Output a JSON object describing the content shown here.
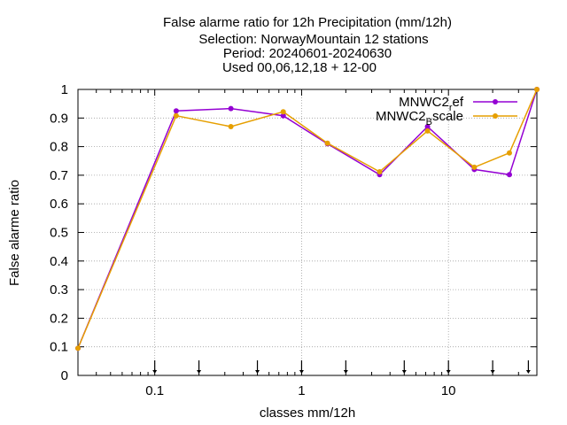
{
  "chart_data": {
    "type": "line",
    "title_lines": [
      "False alarme ratio  for 12h Precipitation (mm/12h)",
      "Selection: NorwayMountain     12 stations",
      "Period: 20240601-20240630",
      "Used 00,06,12,18 + 12-00"
    ],
    "xlabel": "classes mm/12h",
    "ylabel": "False alarme ratio",
    "x_scale": "log",
    "xlim": [
      0.03,
      40
    ],
    "ylim": [
      0,
      1
    ],
    "x_tick_labels": [
      "0.1",
      "1",
      "10"
    ],
    "y_tick_labels": [
      "0",
      "0.1",
      "0.2",
      "0.3",
      "0.4",
      "0.5",
      "0.6",
      "0.7",
      "0.8",
      "0.9",
      "1"
    ],
    "grid": true,
    "legend_position": "top-right",
    "threshold_markers": [
      0.1,
      0.2,
      0.5,
      1,
      2,
      5,
      10,
      20,
      35
    ],
    "series": [
      {
        "name": "MNWC2_ref",
        "legend_main": "MNWC2",
        "legend_sub": "r",
        "legend_rest": "ef",
        "color": "#9400d3",
        "x": [
          0.03,
          0.14,
          0.33,
          0.75,
          1.5,
          3.4,
          7.2,
          15,
          26,
          40
        ],
        "y": [
          0.095,
          0.925,
          0.933,
          0.908,
          0.81,
          0.702,
          0.87,
          0.72,
          0.702,
          1.0
        ]
      },
      {
        "name": "MNWC2_Bscale",
        "legend_main": "MNWC2",
        "legend_sub": "B",
        "legend_rest": "scale",
        "color": "#e69f00",
        "x": [
          0.03,
          0.14,
          0.33,
          0.75,
          1.5,
          3.4,
          7.2,
          15,
          26,
          40
        ],
        "y": [
          0.095,
          0.908,
          0.87,
          0.922,
          0.812,
          0.712,
          0.855,
          0.728,
          0.778,
          1.0
        ]
      }
    ]
  }
}
